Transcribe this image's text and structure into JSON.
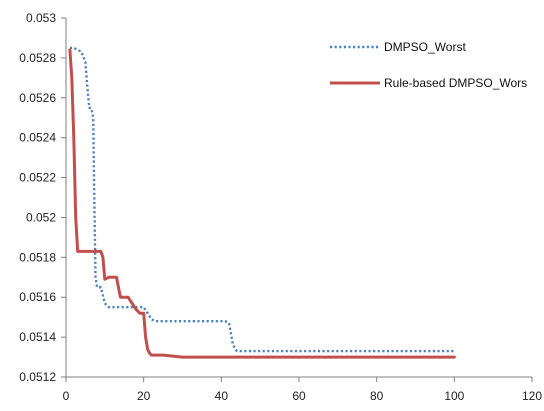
{
  "chart_data": {
    "type": "line",
    "title": "",
    "xlabel": "",
    "ylabel": "",
    "xlim": [
      0,
      120
    ],
    "ylim": [
      0.0512,
      0.053
    ],
    "x_ticks": [
      0,
      20,
      40,
      60,
      80,
      100,
      120
    ],
    "y_ticks": [
      0.0512,
      0.0514,
      0.0516,
      0.0518,
      0.052,
      0.0522,
      0.0524,
      0.0526,
      0.0528,
      0.053
    ],
    "x_tick_labels": [
      "0",
      "20",
      "40",
      "60",
      "80",
      "100",
      "120"
    ],
    "y_tick_labels": [
      "0.0512",
      "0.0514",
      "0.0516",
      "0.0518",
      "0.052",
      "0.0522",
      "0.0524",
      "0.0526",
      "0.0528",
      "0.053"
    ],
    "grid": false,
    "legend_position": "top-right",
    "series": [
      {
        "name": "DMPSO_Worst",
        "color": "#4f81bd",
        "style": "dotted",
        "x": [
          1,
          2,
          3,
          4,
          5,
          5.5,
          6,
          6.5,
          7,
          7.3,
          7.6,
          8,
          9,
          10,
          10.5,
          11,
          12,
          14,
          16,
          18,
          19,
          20,
          21,
          22,
          23,
          25,
          30,
          35,
          40,
          41,
          42,
          43,
          44,
          50,
          60,
          70,
          80,
          90,
          100
        ],
        "values": [
          0.05285,
          0.05285,
          0.05284,
          0.05283,
          0.05278,
          0.05265,
          0.05255,
          0.05255,
          0.0525,
          0.0521,
          0.0517,
          0.05165,
          0.05165,
          0.05157,
          0.05156,
          0.05155,
          0.05155,
          0.05155,
          0.05155,
          0.05155,
          0.05155,
          0.05155,
          0.05152,
          0.05149,
          0.05148,
          0.05148,
          0.05148,
          0.05148,
          0.05148,
          0.05148,
          0.05147,
          0.05136,
          0.05133,
          0.05133,
          0.05133,
          0.05133,
          0.05133,
          0.05133,
          0.05133
        ]
      },
      {
        "name": "Rule-based DMPSO_Wors",
        "color": "#c0504d",
        "style": "solid",
        "x": [
          1,
          1.5,
          2,
          2.5,
          3,
          4,
          6,
          7,
          7.5,
          8,
          9,
          9.5,
          10,
          11,
          12,
          13,
          14,
          15,
          16,
          17,
          18,
          19,
          20,
          20.5,
          21,
          21.5,
          22,
          23,
          25,
          30,
          40,
          50,
          60,
          70,
          80,
          90,
          100
        ],
        "values": [
          0.05284,
          0.0527,
          0.0524,
          0.052,
          0.05183,
          0.05183,
          0.05183,
          0.05183,
          0.05183,
          0.05183,
          0.05183,
          0.0518,
          0.05169,
          0.0517,
          0.0517,
          0.0517,
          0.0516,
          0.0516,
          0.0516,
          0.05157,
          0.05154,
          0.05152,
          0.05152,
          0.0514,
          0.05134,
          0.05132,
          0.05131,
          0.05131,
          0.05131,
          0.0513,
          0.0513,
          0.0513,
          0.0513,
          0.0513,
          0.0513,
          0.0513,
          0.0513
        ]
      }
    ]
  }
}
